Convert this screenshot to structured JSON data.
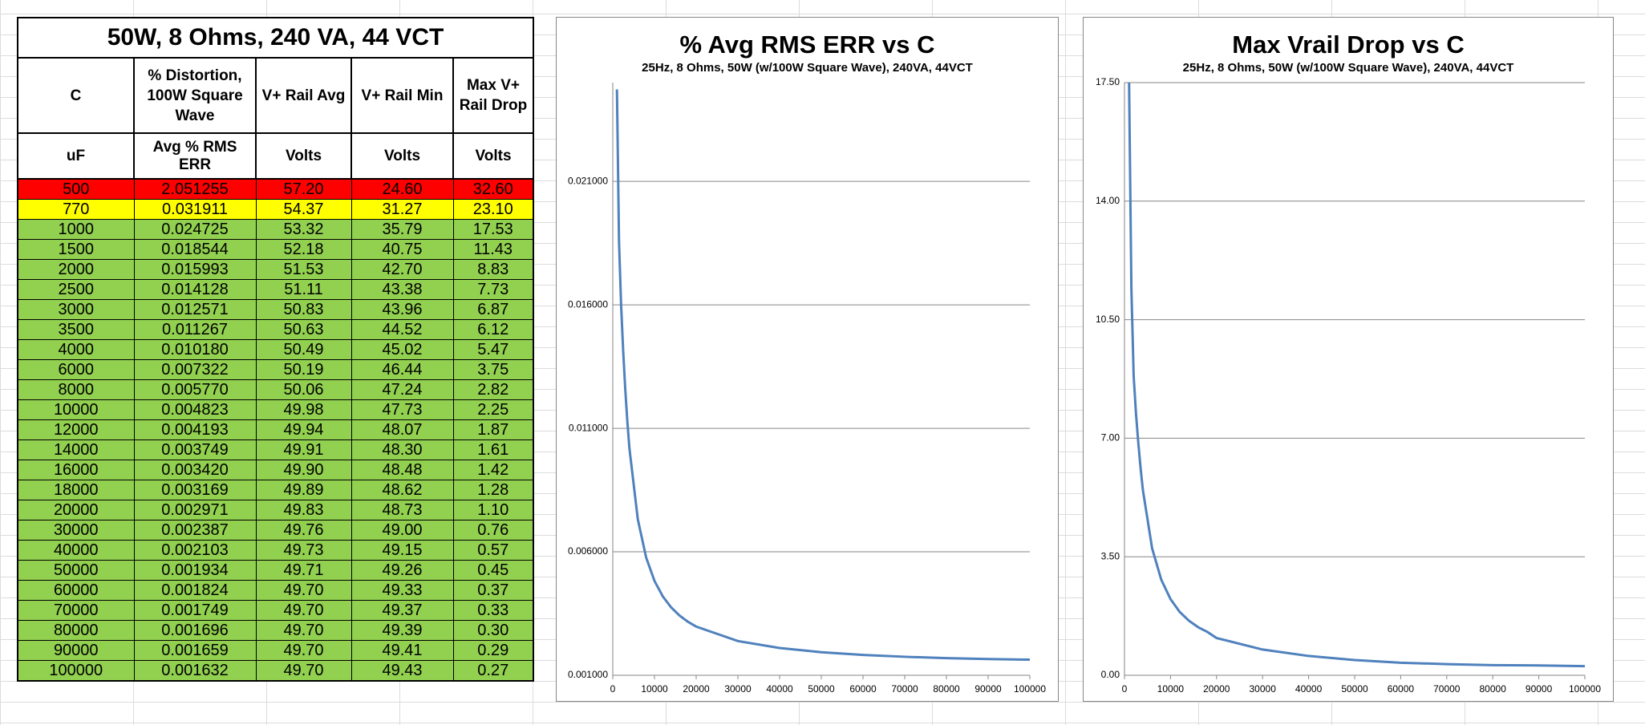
{
  "table": {
    "title": "50W, 8 Ohms, 240 VA, 44 VCT",
    "header": [
      "C",
      "% Distortion, 100W Square Wave",
      "V+ Rail Avg",
      "V+ Rail Min",
      "Max V+ Rail Drop"
    ],
    "subheader": [
      "uF",
      "Avg % RMS ERR",
      "Volts",
      "Volts",
      "Volts"
    ],
    "rows": [
      [
        "500",
        "2.051255",
        "57.20",
        "24.60",
        "32.60"
      ],
      [
        "770",
        "0.031911",
        "54.37",
        "31.27",
        "23.10"
      ],
      [
        "1000",
        "0.024725",
        "53.32",
        "35.79",
        "17.53"
      ],
      [
        "1500",
        "0.018544",
        "52.18",
        "40.75",
        "11.43"
      ],
      [
        "2000",
        "0.015993",
        "51.53",
        "42.70",
        "8.83"
      ],
      [
        "2500",
        "0.014128",
        "51.11",
        "43.38",
        "7.73"
      ],
      [
        "3000",
        "0.012571",
        "50.83",
        "43.96",
        "6.87"
      ],
      [
        "3500",
        "0.011267",
        "50.63",
        "44.52",
        "6.12"
      ],
      [
        "4000",
        "0.010180",
        "50.49",
        "45.02",
        "5.47"
      ],
      [
        "6000",
        "0.007322",
        "50.19",
        "46.44",
        "3.75"
      ],
      [
        "8000",
        "0.005770",
        "50.06",
        "47.24",
        "2.82"
      ],
      [
        "10000",
        "0.004823",
        "49.98",
        "47.73",
        "2.25"
      ],
      [
        "12000",
        "0.004193",
        "49.94",
        "48.07",
        "1.87"
      ],
      [
        "14000",
        "0.003749",
        "49.91",
        "48.30",
        "1.61"
      ],
      [
        "16000",
        "0.003420",
        "49.90",
        "48.48",
        "1.42"
      ],
      [
        "18000",
        "0.003169",
        "49.89",
        "48.62",
        "1.28"
      ],
      [
        "20000",
        "0.002971",
        "49.83",
        "48.73",
        "1.10"
      ],
      [
        "30000",
        "0.002387",
        "49.76",
        "49.00",
        "0.76"
      ],
      [
        "40000",
        "0.002103",
        "49.73",
        "49.15",
        "0.57"
      ],
      [
        "50000",
        "0.001934",
        "49.71",
        "49.26",
        "0.45"
      ],
      [
        "60000",
        "0.001824",
        "49.70",
        "49.33",
        "0.37"
      ],
      [
        "70000",
        "0.001749",
        "49.70",
        "49.37",
        "0.33"
      ],
      [
        "80000",
        "0.001696",
        "49.70",
        "49.39",
        "0.30"
      ],
      [
        "90000",
        "0.001659",
        "49.70",
        "49.41",
        "0.29"
      ],
      [
        "100000",
        "0.001632",
        "49.70",
        "49.43",
        "0.27"
      ]
    ]
  },
  "chart_data": [
    {
      "type": "line",
      "title": "% Avg RMS ERR vs C",
      "subtitle": "25Hz,  8 Ohms,  50W (w/100W Square Wave),  240VA, 44VCT",
      "color": "#4f81bd",
      "grid": true,
      "x": [
        1000,
        1500,
        2000,
        2500,
        3000,
        3500,
        4000,
        6000,
        8000,
        10000,
        12000,
        14000,
        16000,
        18000,
        20000,
        30000,
        40000,
        50000,
        60000,
        70000,
        80000,
        90000,
        100000
      ],
      "values": [
        0.024725,
        0.018544,
        0.015993,
        0.014128,
        0.012571,
        0.011267,
        0.01018,
        0.007322,
        0.00577,
        0.004823,
        0.004193,
        0.003749,
        0.00342,
        0.003169,
        0.002971,
        0.002387,
        0.002103,
        0.001934,
        0.001824,
        0.001749,
        0.001696,
        0.001659,
        0.001632
      ],
      "xlim": [
        0,
        100000
      ],
      "xticks": [
        0,
        10000,
        20000,
        30000,
        40000,
        50000,
        60000,
        70000,
        80000,
        90000,
        100000
      ],
      "ylim": [
        0.001,
        0.025
      ],
      "yticks": [
        {
          "value": 0.001,
          "label": "0.001000"
        },
        {
          "value": 0.006,
          "label": "0.006000"
        },
        {
          "value": 0.011,
          "label": "0.011000"
        },
        {
          "value": 0.016,
          "label": "0.016000"
        },
        {
          "value": 0.021,
          "label": "0.021000"
        }
      ]
    },
    {
      "type": "line",
      "title": "Max Vrail Drop vs C",
      "subtitle": "25Hz,  8 Ohms,  50W (w/100W Square Wave),  240VA, 44VCT",
      "color": "#4f81bd",
      "grid": true,
      "x": [
        1000,
        1500,
        2000,
        2500,
        3000,
        3500,
        4000,
        6000,
        8000,
        10000,
        12000,
        14000,
        16000,
        18000,
        20000,
        30000,
        40000,
        50000,
        60000,
        70000,
        80000,
        90000,
        100000
      ],
      "values": [
        17.53,
        11.43,
        8.83,
        7.73,
        6.87,
        6.12,
        5.47,
        3.75,
        2.82,
        2.25,
        1.87,
        1.61,
        1.42,
        1.28,
        1.1,
        0.76,
        0.57,
        0.45,
        0.37,
        0.33,
        0.3,
        0.29,
        0.27
      ],
      "xlim": [
        0,
        100000
      ],
      "xticks": [
        0,
        10000,
        20000,
        30000,
        40000,
        50000,
        60000,
        70000,
        80000,
        90000,
        100000
      ],
      "ylim": [
        0,
        17.5
      ],
      "yticks": [
        {
          "value": 0,
          "label": "0.00"
        },
        {
          "value": 3.5,
          "label": "3.50"
        },
        {
          "value": 7,
          "label": "7.00"
        },
        {
          "value": 10.5,
          "label": "10.50"
        },
        {
          "value": 14,
          "label": "14.00"
        },
        {
          "value": 17.5,
          "label": "17.50"
        }
      ]
    }
  ]
}
